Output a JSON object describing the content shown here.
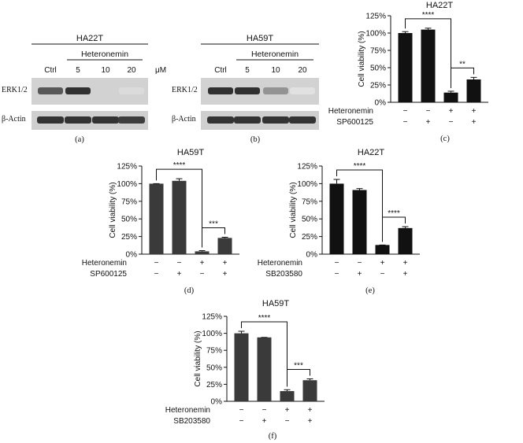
{
  "blots": [
    {
      "panel_label": "(a)",
      "cell_line": "HA22T",
      "treatment": "Heteronemin",
      "lanes": [
        "Ctrl",
        "5",
        "10",
        "20"
      ],
      "unit": "μM",
      "rows": [
        "ERK1/2",
        "β-Actin"
      ],
      "erk_intensity": [
        0.75,
        0.95,
        0.12,
        0.08
      ],
      "actin_intensity": [
        0.9,
        0.9,
        0.9,
        0.85
      ]
    },
    {
      "panel_label": "(b)",
      "cell_line": "HA59T",
      "treatment": "Heteronemin",
      "lanes": [
        "Ctrl",
        "5",
        "10",
        "20"
      ],
      "unit": "μM",
      "rows": [
        "ERK1/2",
        "β-Actin"
      ],
      "erk_intensity": [
        0.95,
        0.95,
        0.45,
        0.05
      ],
      "actin_intensity": [
        0.9,
        0.9,
        0.9,
        0.9
      ]
    }
  ],
  "chart_data": [
    {
      "panel_label": "(c)",
      "type": "bar",
      "title": "HA22T",
      "ylabel": "Cell viability (%)",
      "ylim": [
        0,
        125
      ],
      "yticks": [
        "0%",
        "25%",
        "50%",
        "75%",
        "100%",
        "125%"
      ],
      "values": [
        100,
        105,
        14,
        33
      ],
      "errors": [
        2,
        2,
        2,
        3
      ],
      "row_labels": [
        "Heteronemin",
        "SP600125"
      ],
      "row_signs": [
        [
          "−",
          "−",
          "+",
          "+"
        ],
        [
          "−",
          "+",
          "−",
          "+"
        ]
      ],
      "significance": [
        {
          "from": 0,
          "to": 2,
          "label": "****"
        },
        {
          "from": 2,
          "to": 3,
          "label": "**"
        }
      ],
      "color": "#111111"
    },
    {
      "panel_label": "(d)",
      "type": "bar",
      "title": "HA59T",
      "ylabel": "Cell viability (%)",
      "ylim": [
        0,
        125
      ],
      "yticks": [
        "0%",
        "25%",
        "50%",
        "75%",
        "100%",
        "125%"
      ],
      "values": [
        100,
        104,
        4,
        23
      ],
      "errors": [
        0,
        3,
        1,
        1
      ],
      "row_labels": [
        "Heteronemin",
        "SP600125"
      ],
      "row_signs": [
        [
          "−",
          "−",
          "+",
          "+"
        ],
        [
          "−",
          "+",
          "−",
          "+"
        ]
      ],
      "significance": [
        {
          "from": 0,
          "to": 2,
          "label": "****"
        },
        {
          "from": 2,
          "to": 3,
          "label": "***"
        }
      ],
      "color": "#3a3a3a"
    },
    {
      "panel_label": "(e)",
      "type": "bar",
      "title": "HA22T",
      "ylabel": "Cell viability (%)",
      "ylim": [
        0,
        125
      ],
      "yticks": [
        "0%",
        "25%",
        "50%",
        "75%",
        "100%",
        "125%"
      ],
      "values": [
        100,
        91,
        13,
        37
      ],
      "errors": [
        6,
        2,
        0,
        2
      ],
      "row_labels": [
        "Heteronemin",
        "SB203580"
      ],
      "row_signs": [
        [
          "−",
          "−",
          "+",
          "+"
        ],
        [
          "−",
          "+",
          "−",
          "+"
        ]
      ],
      "significance": [
        {
          "from": 0,
          "to": 2,
          "label": "****"
        },
        {
          "from": 2,
          "to": 3,
          "label": "****"
        }
      ],
      "color": "#111111"
    },
    {
      "panel_label": "(f)",
      "type": "bar",
      "title": "HA59T",
      "ylabel": "Cell viability (%)",
      "ylim": [
        0,
        125
      ],
      "yticks": [
        "0%",
        "25%",
        "50%",
        "75%",
        "100%",
        "125%"
      ],
      "values": [
        100,
        94,
        15,
        31
      ],
      "errors": [
        3,
        0,
        2,
        2
      ],
      "row_labels": [
        "Heteronemin",
        "SB203580"
      ],
      "row_signs": [
        [
          "−",
          "−",
          "+",
          "+"
        ],
        [
          "−",
          "+",
          "−",
          "+"
        ]
      ],
      "significance": [
        {
          "from": 0,
          "to": 2,
          "label": "****"
        },
        {
          "from": 2,
          "to": 3,
          "label": "***"
        }
      ],
      "color": "#3a3a3a"
    }
  ]
}
